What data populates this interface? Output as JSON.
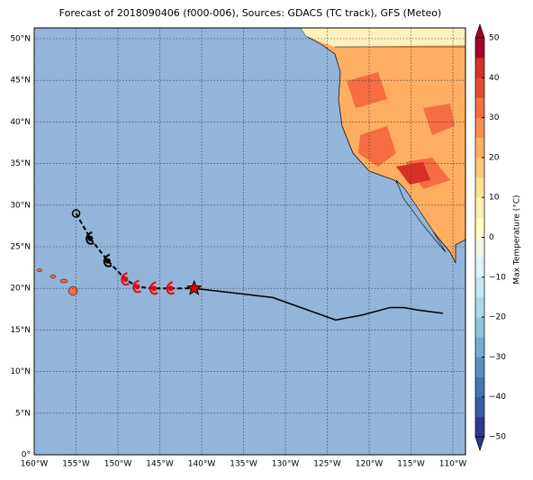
{
  "chart_data": {
    "type": "map",
    "title": "Forecast of 2018090406 (f000-006), Sources: GDACS (TC track), GFS (Meteo)",
    "xlim": [
      -160,
      -108.5
    ],
    "ylim": [
      0,
      51.3
    ],
    "xticks": [
      {
        "value": -160,
        "label": "160°W"
      },
      {
        "value": -155,
        "label": "155°W"
      },
      {
        "value": -150,
        "label": "150°W"
      },
      {
        "value": -145,
        "label": "145°W"
      },
      {
        "value": -140,
        "label": "140°W"
      },
      {
        "value": -135,
        "label": "135°W"
      },
      {
        "value": -130,
        "label": "130°W"
      },
      {
        "value": -125,
        "label": "125°W"
      },
      {
        "value": -120,
        "label": "120°W"
      },
      {
        "value": -115,
        "label": "115°W"
      },
      {
        "value": -110,
        "label": "110°W"
      }
    ],
    "yticks": [
      {
        "value": 0,
        "label": "0°"
      },
      {
        "value": 5,
        "label": "5°N"
      },
      {
        "value": 10,
        "label": "10°N"
      },
      {
        "value": 15,
        "label": "15°N"
      },
      {
        "value": 20,
        "label": "20°N"
      },
      {
        "value": 25,
        "label": "25°N"
      },
      {
        "value": 30,
        "label": "30°N"
      },
      {
        "value": 35,
        "label": "35°N"
      },
      {
        "value": 40,
        "label": "40°N"
      },
      {
        "value": 45,
        "label": "45°N"
      },
      {
        "value": 50,
        "label": "50°N"
      }
    ],
    "grid": true,
    "colorbar": {
      "label": "Max Temperature (°C)",
      "clim": [
        -50,
        50
      ],
      "ticks": [
        {
          "value": -50,
          "label": "−50"
        },
        {
          "value": -40,
          "label": "−40"
        },
        {
          "value": -30,
          "label": "−30"
        },
        {
          "value": -20,
          "label": "−20"
        },
        {
          "value": -10,
          "label": "−10"
        },
        0,
        10,
        20,
        30,
        40,
        50
      ],
      "colors": [
        "#313695",
        "#3a5aa8",
        "#4575b4",
        "#5b8fc3",
        "#74add1",
        "#91c3dc",
        "#abd9e9",
        "#c6e6f0",
        "#e0f3f8",
        "#f0f9e8",
        "#ffffbf",
        "#fff0b0",
        "#fee090",
        "#fdc97a",
        "#fdae61",
        "#f88e52",
        "#f46d43",
        "#e34a33",
        "#d73027",
        "#a50026"
      ]
    },
    "past_track": {
      "lon": [
        -155,
        -153.3,
        -151.2
      ],
      "lat": [
        29,
        26,
        23.3
      ],
      "color": "#000000"
    },
    "forecast_track": {
      "lon": [
        -149.1,
        -147.7,
        -145.7,
        -143.7
      ],
      "lat": [
        21.1,
        20.2,
        20,
        20
      ],
      "color": "#e8000b"
    },
    "current_position": {
      "lon": -140.9,
      "lat": 20,
      "color": "#e8000b"
    },
    "outlook_track": {
      "lon": [
        -140.9,
        -131.5,
        -124,
        -120.8,
        -117.5,
        -115.9,
        -114.2,
        -111.2
      ],
      "lat": [
        20,
        18.9,
        16.2,
        16.8,
        17.7,
        17.7,
        17.4,
        17
      ],
      "color": "#000000"
    }
  }
}
